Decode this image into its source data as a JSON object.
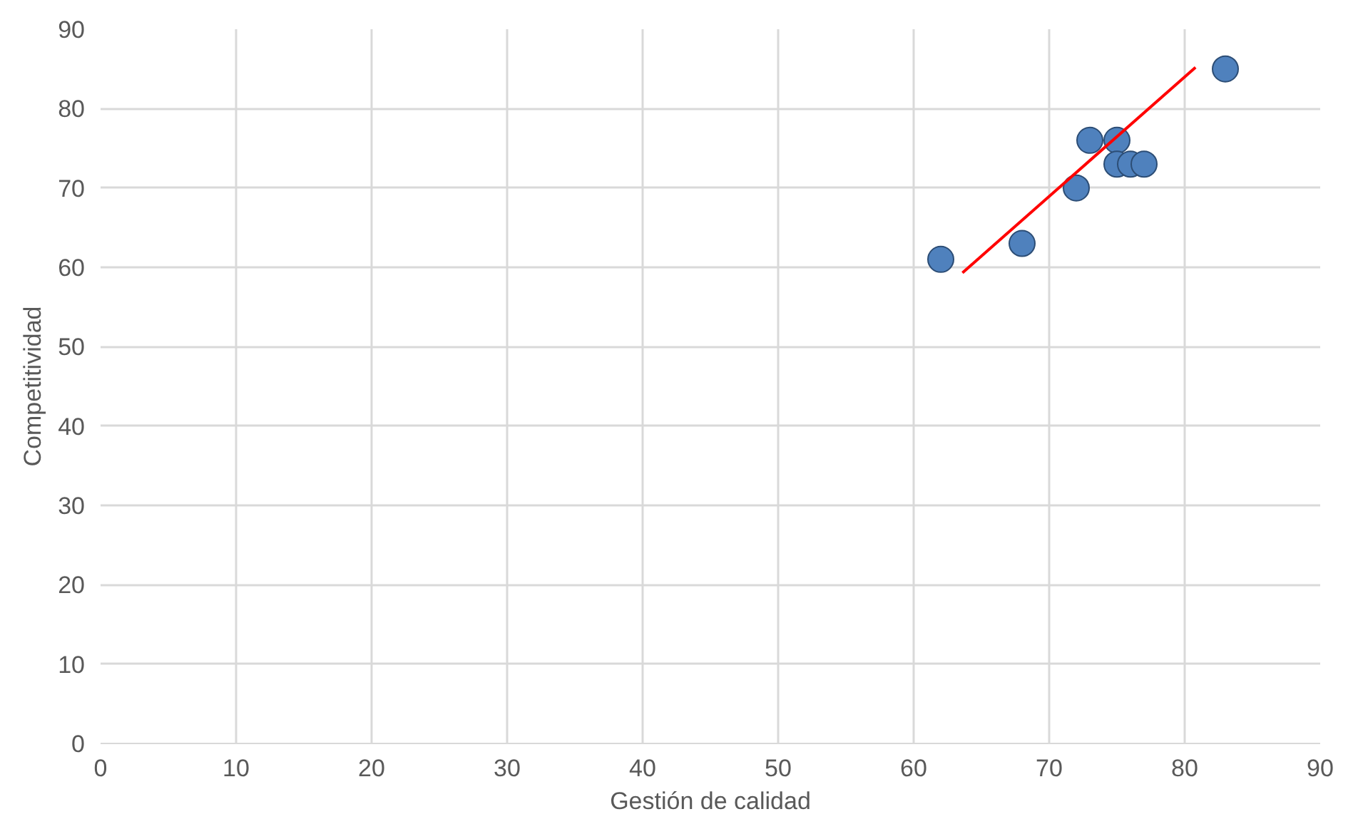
{
  "chart_data": {
    "type": "scatter",
    "xlabel": "Gestión de calidad",
    "ylabel": "Competitividad",
    "xlim": [
      0,
      90
    ],
    "ylim": [
      0,
      90
    ],
    "xticks": [
      0,
      10,
      20,
      30,
      40,
      50,
      60,
      70,
      80,
      90
    ],
    "yticks": [
      0,
      10,
      20,
      30,
      40,
      50,
      60,
      70,
      80,
      90
    ],
    "grid": true,
    "series": [
      {
        "marker": "circle",
        "color": "#4f81bd",
        "x": [
          62,
          68,
          72,
          73,
          75,
          75,
          76,
          77,
          83
        ],
        "values": [
          61,
          63,
          70,
          76,
          76,
          73,
          73,
          73,
          85
        ]
      },
      {
        "type": "line",
        "color": "#ff0000",
        "x": [
          63.6,
          80.8
        ],
        "values": [
          59.3,
          85.2
        ]
      }
    ]
  }
}
